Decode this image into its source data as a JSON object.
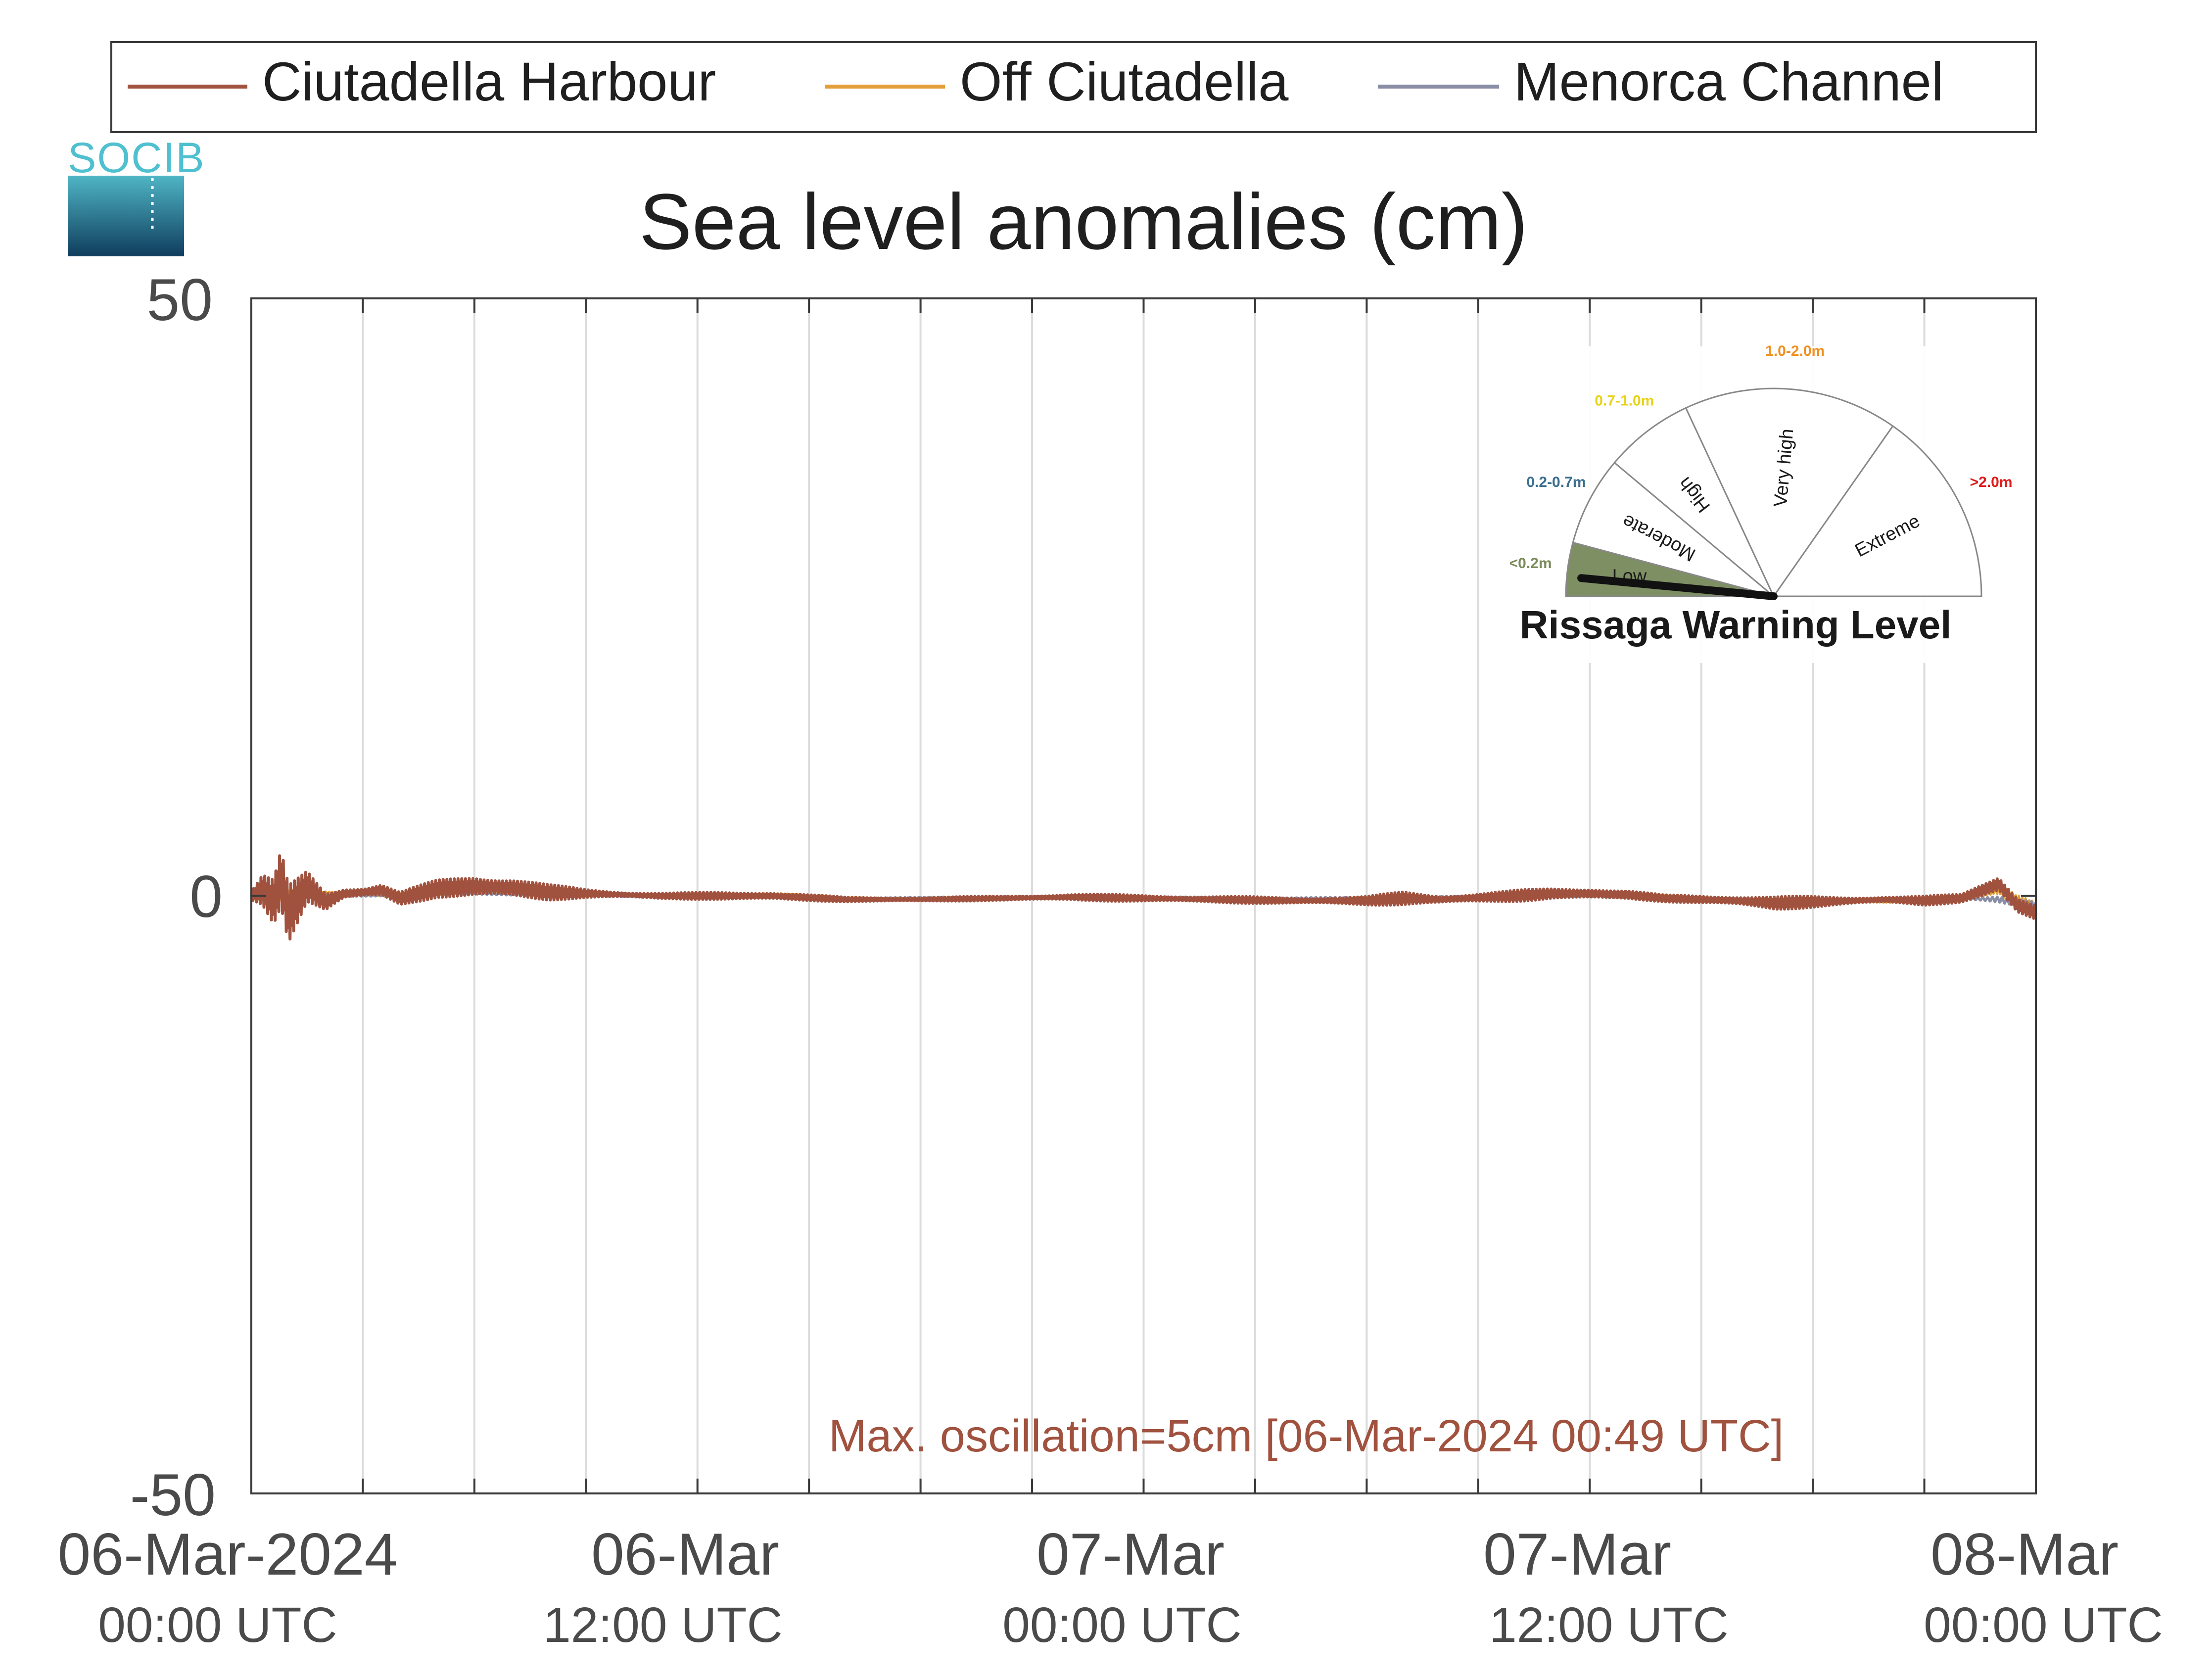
{
  "logo_text": "SOCIB",
  "chart_data": {
    "type": "line",
    "title": "Sea level anomalies (cm)",
    "xlabel": "",
    "ylabel": "",
    "ylim": [
      -50,
      50
    ],
    "yticks": [
      50,
      0,
      -50
    ],
    "yticklabels": [
      "50",
      "0",
      "-50"
    ],
    "xlim_hours": [
      0,
      48
    ],
    "xticks": [
      {
        "hour": 0,
        "date": "06-Mar-2024",
        "time": "00:00 UTC"
      },
      {
        "hour": 12,
        "date": "06-Mar",
        "time": "12:00 UTC"
      },
      {
        "hour": 24,
        "date": "07-Mar",
        "time": "00:00 UTC"
      },
      {
        "hour": 36,
        "date": "07-Mar",
        "time": "12:00 UTC"
      },
      {
        "hour": 48,
        "date": "08-Mar",
        "time": "00:00 UTC"
      }
    ],
    "grid_hours": [
      3,
      6,
      9,
      12,
      15,
      18,
      21,
      24,
      27,
      30,
      33,
      36,
      39,
      42,
      45
    ],
    "grid": true,
    "legend_position": "top",
    "series": [
      {
        "name": "Ciutadella Harbour",
        "color": "#a0523f",
        "x": [
          0,
          0.3,
          0.6,
          0.8,
          1.0,
          1.5,
          2,
          2.5,
          3,
          3.5,
          4,
          5,
          6,
          7,
          8,
          9,
          10,
          11,
          12,
          14,
          16,
          18,
          20,
          22,
          24,
          26,
          28,
          30,
          31,
          32,
          34,
          35,
          36,
          37,
          38,
          40,
          41,
          42,
          44,
          45,
          46,
          47,
          47.5,
          48
        ],
        "y": [
          0,
          0.5,
          -0.5,
          1.5,
          -1.5,
          0.8,
          -0.5,
          0.2,
          0.3,
          0.5,
          -0.2,
          0.6,
          0.8,
          0.7,
          0.3,
          0.2,
          0.1,
          0.0,
          0.0,
          0.0,
          -0.3,
          -0.3,
          -0.2,
          -0.1,
          -0.2,
          -0.3,
          -0.4,
          -0.4,
          -0.2,
          -0.3,
          0.0,
          0.2,
          0.2,
          0.1,
          -0.2,
          -0.4,
          -0.6,
          -0.5,
          -0.3,
          -0.4,
          -0.2,
          1.0,
          -0.8,
          -1.4
        ],
        "osc_amp": [
          0.5,
          1.5,
          2.0,
          2.5,
          2.5,
          1.5,
          1.0,
          0.6,
          0.5,
          0.6,
          0.6,
          0.8,
          1.2,
          1.0,
          0.7,
          0.4,
          0.3,
          0.3,
          0.3,
          0.4,
          0.2,
          0.2,
          0.2,
          0.3,
          0.3,
          0.3,
          0.3,
          0.4,
          0.6,
          0.4,
          0.5,
          0.5,
          0.6,
          0.4,
          0.3,
          0.5,
          0.6,
          0.5,
          0.3,
          0.4,
          0.4,
          1.0,
          1.0,
          0.8
        ]
      },
      {
        "name": "Off Ciutadella",
        "color": "#e3a03a",
        "x": [
          0,
          0.5,
          1,
          2,
          3,
          4,
          6,
          8,
          10,
          12,
          14,
          16,
          18,
          20,
          22,
          24,
          26,
          28,
          30,
          32,
          34,
          36,
          38,
          40,
          42,
          44,
          46,
          47,
          47.5,
          48
        ],
        "y": [
          0,
          0.3,
          0.0,
          0.2,
          0.2,
          0.1,
          0.4,
          0.3,
          0.1,
          0.0,
          0.1,
          -0.2,
          -0.2,
          -0.2,
          -0.1,
          -0.2,
          -0.3,
          -0.4,
          -0.3,
          -0.2,
          0.0,
          0.1,
          -0.1,
          -0.4,
          -0.4,
          -0.4,
          -0.2,
          0.6,
          -0.5,
          -1.0
        ],
        "osc_amp": [
          0.4,
          0.6,
          0.6,
          0.3,
          0.2,
          0.2,
          0.3,
          0.2,
          0.1,
          0.1,
          0.2,
          0.1,
          0.1,
          0.1,
          0.1,
          0.1,
          0.1,
          0.1,
          0.2,
          0.2,
          0.2,
          0.2,
          0.2,
          0.2,
          0.2,
          0.2,
          0.2,
          0.7,
          0.7,
          0.5
        ]
      },
      {
        "name": "Menorca Channel",
        "color": "#8a8da6",
        "x": [
          0,
          2,
          4,
          6,
          8,
          10,
          12,
          14,
          16,
          18,
          20,
          22,
          24,
          26,
          28,
          30,
          32,
          34,
          36,
          38,
          40,
          42,
          44,
          46,
          47,
          48
        ],
        "y": [
          0,
          0.0,
          0.1,
          0.2,
          0.1,
          0.0,
          -0.1,
          0.0,
          -0.2,
          -0.2,
          -0.1,
          -0.1,
          -0.1,
          -0.2,
          -0.2,
          -0.2,
          -0.1,
          -0.1,
          0.0,
          -0.1,
          -0.3,
          -0.4,
          -0.3,
          -0.2,
          -0.3,
          -0.8
        ],
        "osc_amp": [
          0.1,
          0.1,
          0.1,
          0.1,
          0.1,
          0.1,
          0.1,
          0.1,
          0.1,
          0.1,
          0.1,
          0.1,
          0.1,
          0.1,
          0.1,
          0.1,
          0.1,
          0.1,
          0.1,
          0.1,
          0.1,
          0.1,
          0.1,
          0.1,
          0.3,
          0.3
        ]
      }
    ],
    "annotation": "Max. oscillation=5cm [06-Mar-2024 00:49 UTC]",
    "annotation_color": "#a0523f"
  },
  "gauge": {
    "title": "Rissaga Warning Level",
    "value_label": "Low",
    "needle_fraction": 0.03,
    "sectors": [
      {
        "label": "Low",
        "range": "<0.2m",
        "range_color": "#7a8a5a",
        "fill": "#7e8f63"
      },
      {
        "label": "Moderate",
        "range": "0.2-0.7m",
        "range_color": "#3a6f8f",
        "fill": "#ffffff"
      },
      {
        "label": "High",
        "range": "0.7-1.0m",
        "range_color": "#e8d21a",
        "fill": "#ffffff"
      },
      {
        "label": "Very high",
        "range": "1.0-2.0m",
        "range_color": "#f0901e",
        "fill": "#ffffff"
      },
      {
        "label": "Extreme",
        "range": ">2.0m",
        "range_color": "#e01b1b",
        "fill": "#ffffff"
      }
    ]
  }
}
